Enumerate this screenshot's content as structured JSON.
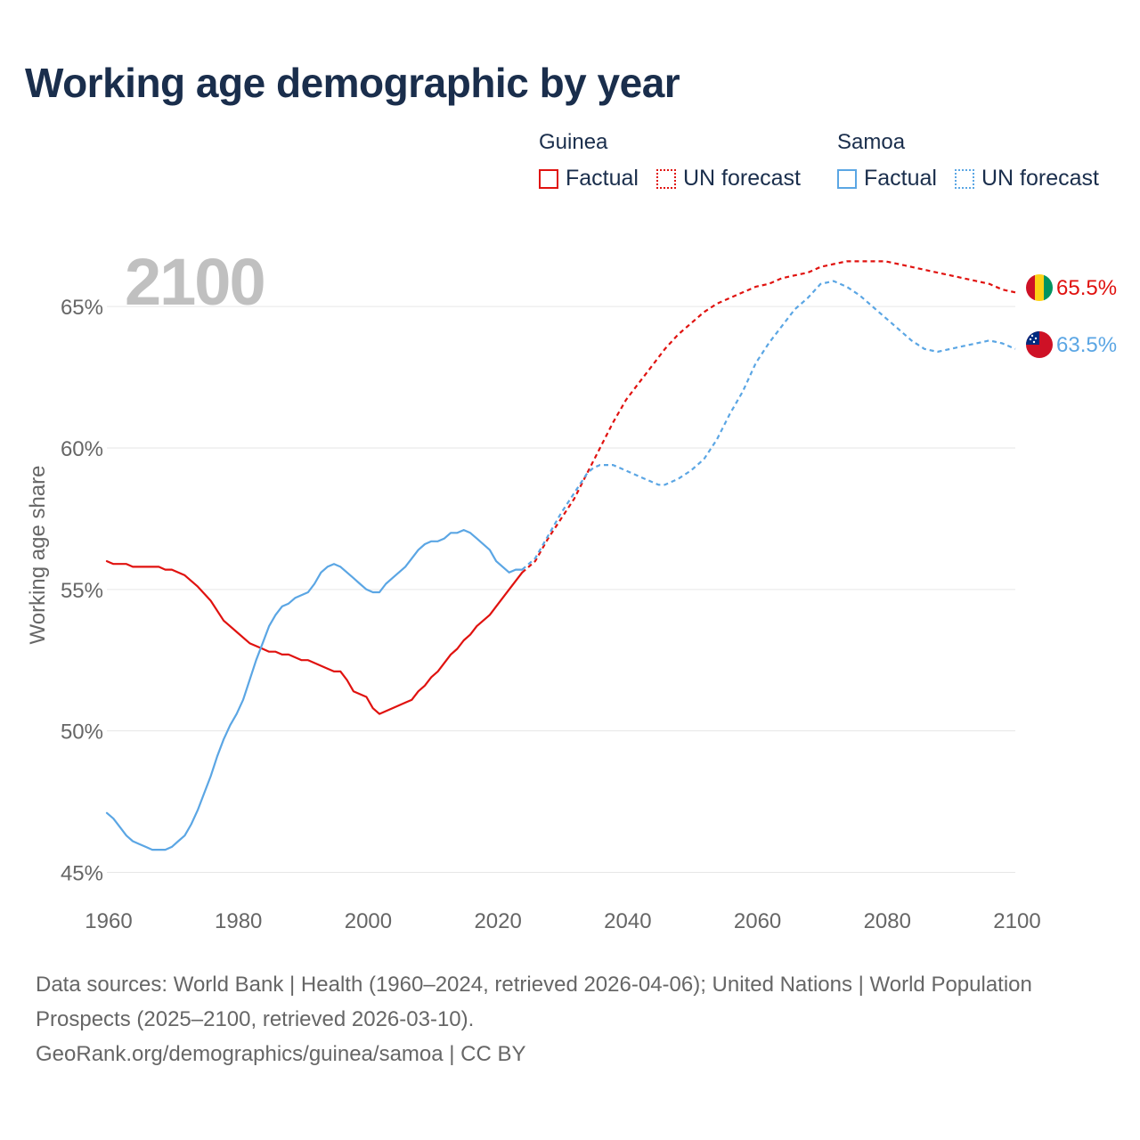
{
  "title": "Working age demographic by year",
  "legend": {
    "groups": [
      {
        "country": "Guinea",
        "factual_label": "Factual",
        "forecast_label": "UN forecast"
      },
      {
        "country": "Samoa",
        "factual_label": "Factual",
        "forecast_label": "UN forecast"
      }
    ]
  },
  "colors": {
    "guinea": "#e0120f",
    "samoa": "#5ba6e4",
    "grid": "#e6e6e6",
    "axis_text": "#666666",
    "year_watermark": "#c0c0c0"
  },
  "footer": {
    "line1": "Data sources: World Bank | Health (1960–2024, retrieved 2026-04-06); United Nations | World Population Prospects (2025–2100, retrieved 2026-03-10).",
    "line2": "GeoRank.org/demographics/guinea/samoa | CC BY"
  },
  "chart_data": {
    "type": "line",
    "title": "Working age demographic by year",
    "year_label": "2100",
    "xlabel": "",
    "ylabel": "Working age share",
    "xlim": [
      1960,
      2100
    ],
    "ylim": [
      44.7,
      66.8
    ],
    "x_ticks": [
      1960,
      1980,
      2000,
      2020,
      2040,
      2060,
      2080,
      2100
    ],
    "y_ticks": [
      45,
      50,
      55,
      60,
      65
    ],
    "y_tick_labels": [
      "45%",
      "50%",
      "55%",
      "60%",
      "65%"
    ],
    "grid": true,
    "legend_position": "top-right",
    "series": [
      {
        "name": "Guinea",
        "color": "#e0120f",
        "end_label": "65.5%",
        "factual": [
          [
            1960,
            56.0
          ],
          [
            1961,
            55.9
          ],
          [
            1963,
            55.9
          ],
          [
            1964,
            55.8
          ],
          [
            1966,
            55.8
          ],
          [
            1968,
            55.8
          ],
          [
            1969,
            55.7
          ],
          [
            1970,
            55.7
          ],
          [
            1972,
            55.5
          ],
          [
            1974,
            55.1
          ],
          [
            1976,
            54.6
          ],
          [
            1978,
            53.9
          ],
          [
            1980,
            53.5
          ],
          [
            1982,
            53.1
          ],
          [
            1984,
            52.9
          ],
          [
            1985,
            52.8
          ],
          [
            1986,
            52.8
          ],
          [
            1987,
            52.7
          ],
          [
            1988,
            52.7
          ],
          [
            1990,
            52.5
          ],
          [
            1991,
            52.5
          ],
          [
            1992,
            52.4
          ],
          [
            1994,
            52.2
          ],
          [
            1995,
            52.1
          ],
          [
            1996,
            52.1
          ],
          [
            1997,
            51.8
          ],
          [
            1998,
            51.4
          ],
          [
            2000,
            51.2
          ],
          [
            2001,
            50.8
          ],
          [
            2002,
            50.6
          ],
          [
            2004,
            50.8
          ],
          [
            2006,
            51.0
          ],
          [
            2007,
            51.1
          ],
          [
            2008,
            51.4
          ],
          [
            2009,
            51.6
          ],
          [
            2010,
            51.9
          ],
          [
            2011,
            52.1
          ],
          [
            2013,
            52.7
          ],
          [
            2014,
            52.9
          ],
          [
            2015,
            53.2
          ],
          [
            2016,
            53.4
          ],
          [
            2017,
            53.7
          ],
          [
            2019,
            54.1
          ],
          [
            2020,
            54.4
          ],
          [
            2022,
            55.0
          ],
          [
            2024,
            55.6
          ]
        ],
        "forecast": [
          [
            2024,
            55.6
          ],
          [
            2026,
            56.0
          ],
          [
            2028,
            56.8
          ],
          [
            2030,
            57.5
          ],
          [
            2032,
            58.2
          ],
          [
            2034,
            59.1
          ],
          [
            2036,
            60.0
          ],
          [
            2038,
            60.9
          ],
          [
            2040,
            61.7
          ],
          [
            2042,
            62.3
          ],
          [
            2044,
            62.9
          ],
          [
            2046,
            63.5
          ],
          [
            2048,
            64.0
          ],
          [
            2050,
            64.4
          ],
          [
            2052,
            64.8
          ],
          [
            2054,
            65.1
          ],
          [
            2056,
            65.3
          ],
          [
            2058,
            65.5
          ],
          [
            2060,
            65.7
          ],
          [
            2062,
            65.8
          ],
          [
            2064,
            66.0
          ],
          [
            2066,
            66.1
          ],
          [
            2068,
            66.2
          ],
          [
            2070,
            66.4
          ],
          [
            2072,
            66.5
          ],
          [
            2074,
            66.6
          ],
          [
            2076,
            66.6
          ],
          [
            2078,
            66.6
          ],
          [
            2080,
            66.6
          ],
          [
            2082,
            66.5
          ],
          [
            2084,
            66.4
          ],
          [
            2086,
            66.3
          ],
          [
            2088,
            66.2
          ],
          [
            2090,
            66.1
          ],
          [
            2092,
            66.0
          ],
          [
            2094,
            65.9
          ],
          [
            2096,
            65.8
          ],
          [
            2098,
            65.6
          ],
          [
            2100,
            65.5
          ]
        ]
      },
      {
        "name": "Samoa",
        "color": "#5ba6e4",
        "end_label": "63.5%",
        "factual": [
          [
            1960,
            47.1
          ],
          [
            1961,
            46.9
          ],
          [
            1962,
            46.6
          ],
          [
            1963,
            46.3
          ],
          [
            1964,
            46.1
          ],
          [
            1965,
            46.0
          ],
          [
            1966,
            45.9
          ],
          [
            1967,
            45.8
          ],
          [
            1968,
            45.8
          ],
          [
            1969,
            45.8
          ],
          [
            1970,
            45.9
          ],
          [
            1971,
            46.1
          ],
          [
            1972,
            46.3
          ],
          [
            1973,
            46.7
          ],
          [
            1974,
            47.2
          ],
          [
            1975,
            47.8
          ],
          [
            1976,
            48.4
          ],
          [
            1977,
            49.1
          ],
          [
            1978,
            49.7
          ],
          [
            1979,
            50.2
          ],
          [
            1980,
            50.6
          ],
          [
            1981,
            51.1
          ],
          [
            1982,
            51.8
          ],
          [
            1983,
            52.5
          ],
          [
            1984,
            53.1
          ],
          [
            1985,
            53.7
          ],
          [
            1986,
            54.1
          ],
          [
            1987,
            54.4
          ],
          [
            1988,
            54.5
          ],
          [
            1989,
            54.7
          ],
          [
            1991,
            54.9
          ],
          [
            1992,
            55.2
          ],
          [
            1993,
            55.6
          ],
          [
            1994,
            55.8
          ],
          [
            1995,
            55.9
          ],
          [
            1996,
            55.8
          ],
          [
            1998,
            55.4
          ],
          [
            1999,
            55.2
          ],
          [
            2000,
            55.0
          ],
          [
            2001,
            54.9
          ],
          [
            2002,
            54.9
          ],
          [
            2003,
            55.2
          ],
          [
            2004,
            55.4
          ],
          [
            2006,
            55.8
          ],
          [
            2007,
            56.1
          ],
          [
            2008,
            56.4
          ],
          [
            2009,
            56.6
          ],
          [
            2010,
            56.7
          ],
          [
            2011,
            56.7
          ],
          [
            2012,
            56.8
          ],
          [
            2013,
            57.0
          ],
          [
            2014,
            57.0
          ],
          [
            2015,
            57.1
          ],
          [
            2016,
            57.0
          ],
          [
            2017,
            56.8
          ],
          [
            2019,
            56.4
          ],
          [
            2020,
            56.0
          ],
          [
            2022,
            55.6
          ],
          [
            2023,
            55.7
          ],
          [
            2024,
            55.7
          ]
        ],
        "forecast": [
          [
            2024,
            55.7
          ],
          [
            2026,
            56.1
          ],
          [
            2028,
            56.9
          ],
          [
            2030,
            57.7
          ],
          [
            2032,
            58.4
          ],
          [
            2034,
            59.1
          ],
          [
            2035,
            59.3
          ],
          [
            2036,
            59.4
          ],
          [
            2037,
            59.4
          ],
          [
            2038,
            59.4
          ],
          [
            2040,
            59.2
          ],
          [
            2042,
            59.0
          ],
          [
            2044,
            58.8
          ],
          [
            2045,
            58.7
          ],
          [
            2046,
            58.7
          ],
          [
            2048,
            58.9
          ],
          [
            2050,
            59.2
          ],
          [
            2052,
            59.6
          ],
          [
            2054,
            60.3
          ],
          [
            2056,
            61.2
          ],
          [
            2058,
            62.0
          ],
          [
            2060,
            63.0
          ],
          [
            2062,
            63.7
          ],
          [
            2064,
            64.3
          ],
          [
            2066,
            64.9
          ],
          [
            2068,
            65.3
          ],
          [
            2070,
            65.8
          ],
          [
            2072,
            65.9
          ],
          [
            2074,
            65.7
          ],
          [
            2076,
            65.4
          ],
          [
            2078,
            65.0
          ],
          [
            2080,
            64.6
          ],
          [
            2082,
            64.2
          ],
          [
            2084,
            63.8
          ],
          [
            2086,
            63.5
          ],
          [
            2088,
            63.4
          ],
          [
            2090,
            63.5
          ],
          [
            2092,
            63.6
          ],
          [
            2094,
            63.7
          ],
          [
            2096,
            63.8
          ],
          [
            2098,
            63.7
          ],
          [
            2100,
            63.5
          ]
        ]
      }
    ]
  }
}
